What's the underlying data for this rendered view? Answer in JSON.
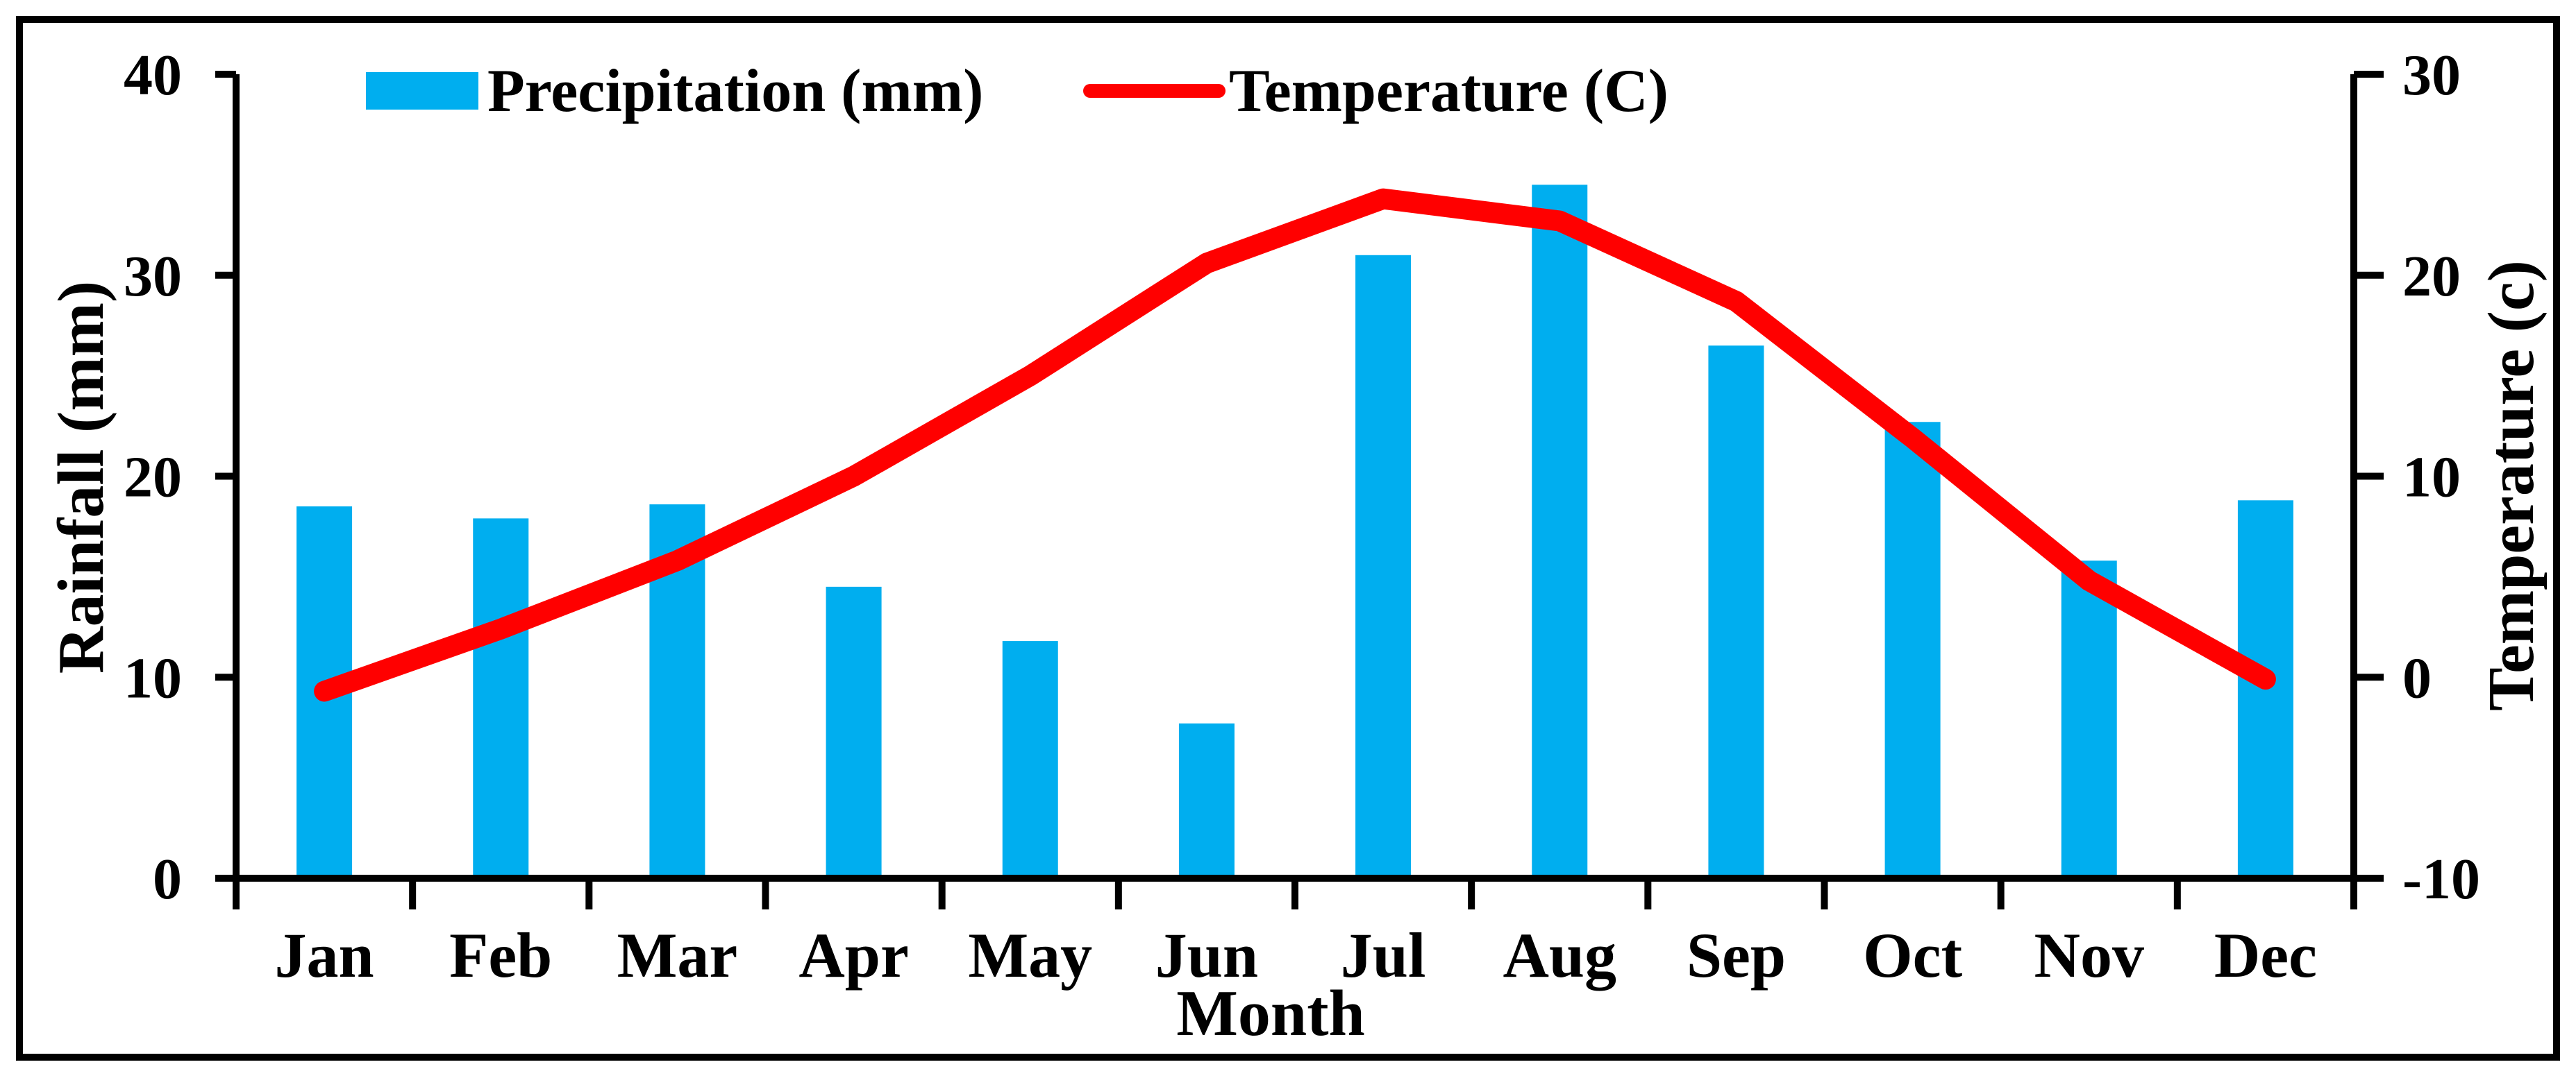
{
  "chart_data": {
    "type": "bar+line",
    "categories": [
      "Jan",
      "Feb",
      "Mar",
      "Apr",
      "May",
      "Jun",
      "Jul",
      "Aug",
      "Sep",
      "Oct",
      "Nov",
      "Dec"
    ],
    "series": [
      {
        "name": "Precipitation (mm)",
        "type": "bar",
        "axis": "left",
        "color": "#00AEEF",
        "values": [
          18.5,
          17.9,
          18.6,
          14.5,
          11.8,
          7.7,
          31.0,
          34.5,
          26.5,
          22.7,
          15.8,
          18.8
        ]
      },
      {
        "name": "Temperature (C)",
        "type": "line",
        "axis": "right",
        "color": "#FF0000",
        "values": [
          -0.7,
          2.4,
          5.8,
          10.0,
          15.0,
          20.6,
          23.8,
          22.7,
          18.7,
          11.9,
          4.8,
          -0.1
        ]
      }
    ],
    "left_axis": {
      "label": "Rainfall (mm)",
      "min": 0,
      "max": 40,
      "ticks": [
        0,
        10,
        20,
        30,
        40
      ]
    },
    "right_axis": {
      "label": "Temperature  (c)",
      "min": -10,
      "max": 30,
      "ticks": [
        -10,
        0,
        10,
        20,
        30
      ]
    },
    "x_axis": {
      "label": "Month"
    },
    "legend": [
      {
        "label": "Precipitation (mm)",
        "swatch": "square",
        "color": "#00AEEF"
      },
      {
        "label": "Temperature (C)",
        "swatch": "line",
        "color": "#FF0000"
      }
    ],
    "grid": false,
    "legend_position": "top",
    "frame_color": "#000000"
  }
}
